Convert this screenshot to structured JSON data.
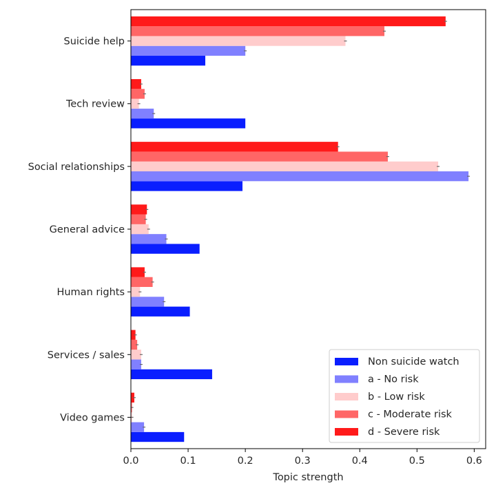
{
  "chart_data": {
    "type": "bar",
    "orientation": "horizontal",
    "title": "",
    "xlabel": "Topic strength",
    "ylabel": "",
    "xlim": [
      0,
      0.62
    ],
    "xticks": [
      "0.0",
      "0.1",
      "0.2",
      "0.3",
      "0.4",
      "0.5",
      "0.6"
    ],
    "categories": [
      "Suicide help",
      "Tech review",
      "Social relationships",
      "General advice",
      "Human rights",
      "Services / sales",
      "Video games"
    ],
    "series": [
      {
        "name": "Non suicide watch",
        "color": "#0a1eff",
        "values": [
          0.13,
          0.2,
          0.195,
          0.12,
          0.103,
          0.142,
          0.093
        ]
      },
      {
        "name": "a - No risk",
        "color": "#8080ff",
        "values": [
          0.2,
          0.04,
          0.59,
          0.062,
          0.058,
          0.018,
          0.023
        ]
      },
      {
        "name": "b - Low risk",
        "color": "#ffcccc",
        "values": [
          0.375,
          0.014,
          0.537,
          0.031,
          0.016,
          0.018,
          0.002
        ]
      },
      {
        "name": "c - Moderate risk",
        "color": "#ff6666",
        "values": [
          0.443,
          0.024,
          0.449,
          0.026,
          0.038,
          0.011,
          0.002
        ]
      },
      {
        "name": "d - Severe risk",
        "color": "#ff1a1a",
        "values": [
          0.55,
          0.018,
          0.362,
          0.028,
          0.024,
          0.008,
          0.006
        ]
      }
    ],
    "legend_position": "bottom-right",
    "grid": false
  }
}
